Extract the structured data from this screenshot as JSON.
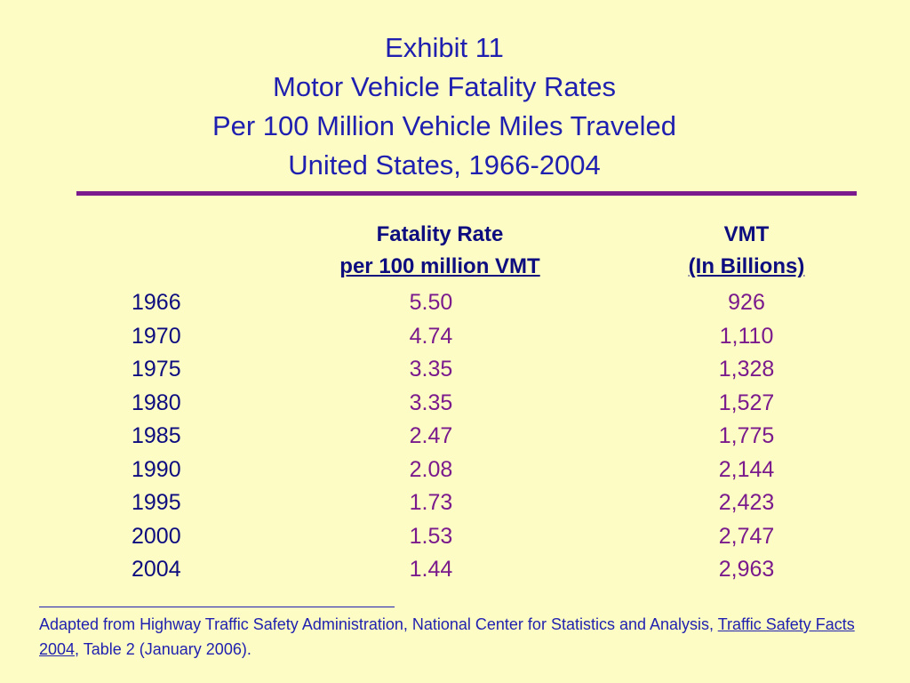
{
  "title": {
    "line1": "Exhibit 11",
    "line2": "Motor Vehicle Fatality Rates",
    "line3": "Per 100 Million Vehicle Miles Traveled",
    "line4": "United States, 1966-2004"
  },
  "headers": {
    "rate_top": "Fatality Rate",
    "rate_sub": "per 100 million VMT",
    "vmt_top": "VMT",
    "vmt_sub": "(In Billions)"
  },
  "rows": [
    {
      "year": "1966",
      "rate": "5.50",
      "vmt": "926"
    },
    {
      "year": "1970",
      "rate": "4.74",
      "vmt": "1,110"
    },
    {
      "year": "1975",
      "rate": "3.35",
      "vmt": "1,328"
    },
    {
      "year": "1980",
      "rate": "3.35",
      "vmt": "1,527"
    },
    {
      "year": "1985",
      "rate": "2.47",
      "vmt": "1,775"
    },
    {
      "year": "1990",
      "rate": "2.08",
      "vmt": "2,144"
    },
    {
      "year": "1995",
      "rate": "1.73",
      "vmt": "2,423"
    },
    {
      "year": "2000",
      "rate": "1.53",
      "vmt": "2,747"
    },
    {
      "year": "2004",
      "rate": "1.44",
      "vmt": "2,963"
    }
  ],
  "footnote": {
    "pre": "Adapted from Highway Traffic Safety Administration, National Center for Statistics and Analysis, ",
    "source_title": "Traffic Safety Facts 2004",
    "post": ", Table 2 (January 2006)."
  },
  "colors": {
    "background": "#fdfcc4",
    "title": "#1f1fb0",
    "values": "#7a1a8c",
    "headers": "#0d0d80",
    "rule": "#7a1a8c"
  }
}
